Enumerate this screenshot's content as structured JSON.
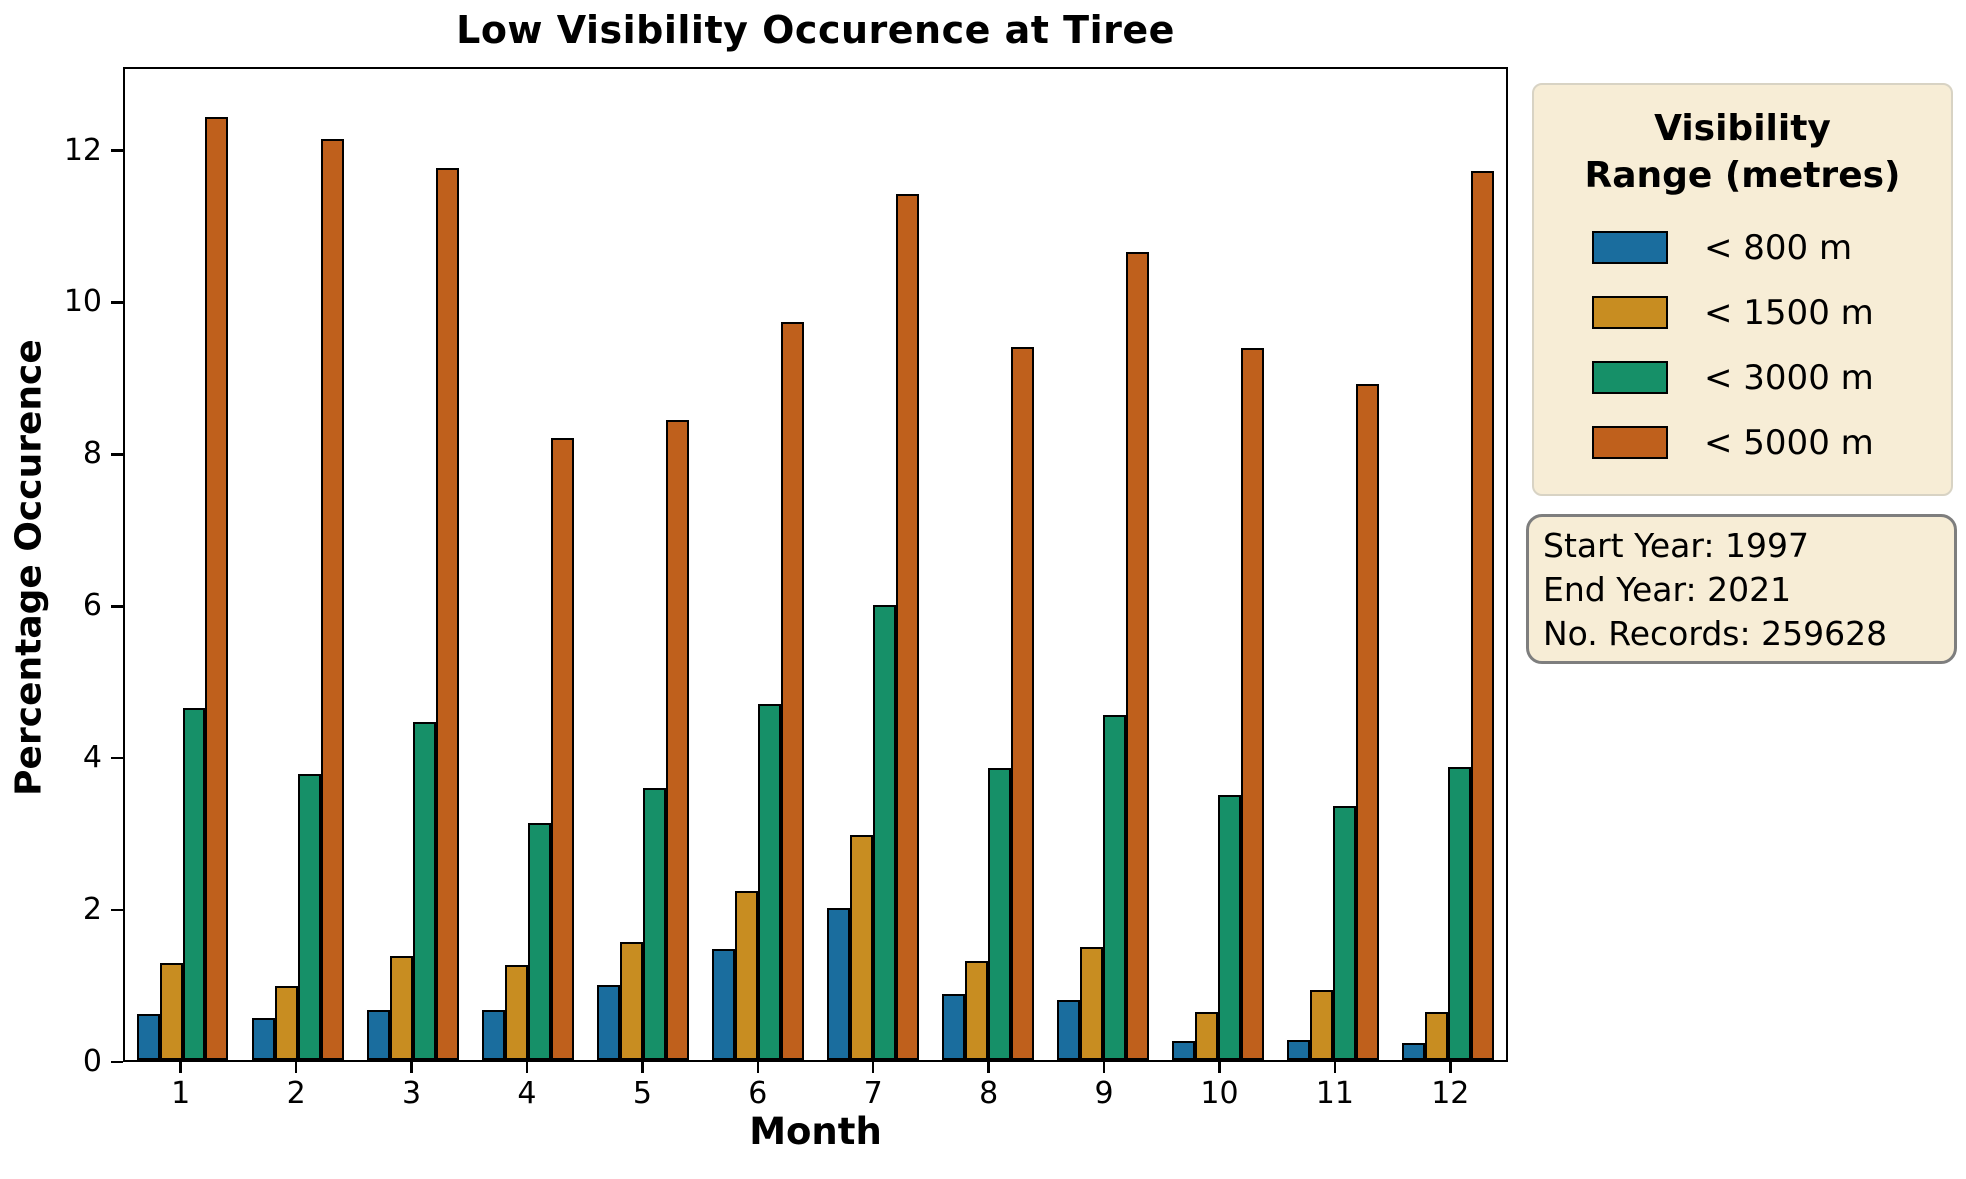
{
  "title": "Low Visibility Occurence at Tiree",
  "chart_data": {
    "type": "bar",
    "title": "Low Visibility Occurence at Tiree",
    "xlabel": "Month",
    "ylabel": "Percentage Occurence",
    "categories": [
      "1",
      "2",
      "3",
      "4",
      "5",
      "6",
      "7",
      "8",
      "9",
      "10",
      "11",
      "12"
    ],
    "ylim": [
      0,
      13.1
    ],
    "yticks": [
      "0",
      "2",
      "4",
      "6",
      "8",
      "10",
      "12"
    ],
    "grid": false,
    "legend_position": "right-outside",
    "series": [
      {
        "name": "< 800 m",
        "color": "#1a6d9e",
        "values": [
          0.61,
          0.55,
          0.66,
          0.66,
          0.99,
          1.47,
          2.01,
          0.87,
          0.79,
          0.25,
          0.27,
          0.23
        ]
      },
      {
        "name": "< 1500 m",
        "color": "#c88d21",
        "values": [
          1.28,
          0.98,
          1.37,
          1.26,
          1.56,
          2.23,
          2.97,
          1.31,
          1.49,
          0.63,
          0.93,
          0.64
        ]
      },
      {
        "name": "< 3000 m",
        "color": "#169068",
        "values": [
          4.65,
          3.78,
          4.47,
          3.13,
          3.6,
          4.7,
          6.01,
          3.86,
          4.56,
          3.5,
          3.36,
          3.87
        ]
      },
      {
        "name": "< 5000 m",
        "color": "#bf601c",
        "values": [
          12.46,
          12.18,
          11.79,
          8.22,
          8.46,
          9.76,
          11.45,
          9.42,
          10.68,
          9.41,
          8.94,
          11.75
        ]
      }
    ]
  },
  "legend": {
    "title_line1": "Visibility",
    "title_line2": "Range (metres)",
    "entries": [
      "< 800 m",
      "< 1500 m",
      "< 3000 m",
      "< 5000 m"
    ]
  },
  "info_box": {
    "lines": [
      "Start Year: 1997",
      "End Year: 2021",
      "No. Records: 259628"
    ]
  },
  "colors": {
    "panel_background": "#f7edd6",
    "legend_border": "#d8d3c4",
    "info_border": "#7e7e7e",
    "bar_edge": "#000000"
  }
}
